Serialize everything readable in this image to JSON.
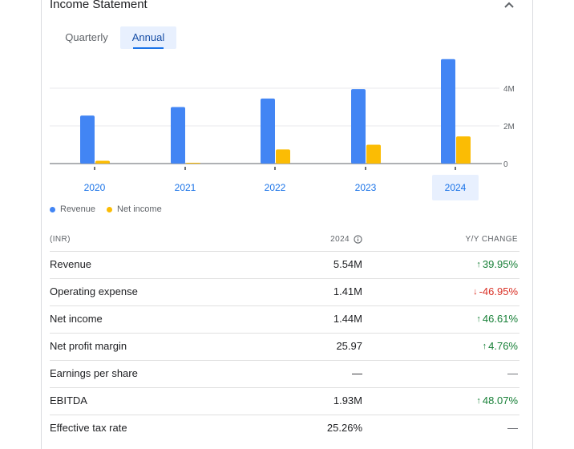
{
  "panel": {
    "title": "Income Statement",
    "tabs": [
      "Quarterly",
      "Annual"
    ],
    "selected_tab": "Annual"
  },
  "colors": {
    "revenue": "#4285f4",
    "net_income": "#fbbc04",
    "accent": "#1a73e8",
    "up": "#188038",
    "down": "#d93025"
  },
  "chart_data": {
    "type": "bar",
    "categories": [
      "2020",
      "2021",
      "2022",
      "2023",
      "2024"
    ],
    "series": [
      {
        "name": "Revenue",
        "values": [
          2.55,
          3.0,
          3.45,
          3.95,
          5.54
        ]
      },
      {
        "name": "Net income",
        "values": [
          0.15,
          0.04,
          0.75,
          1.0,
          1.44
        ]
      }
    ],
    "y_ticks": [
      "4M",
      "2M",
      "0"
    ],
    "ylim": [
      0,
      6
    ],
    "selected_category": "2024",
    "legend": "bottom-left"
  },
  "table": {
    "headers": {
      "label": "(INR)",
      "year": "2024",
      "change": "Y/Y CHANGE"
    },
    "rows": [
      {
        "name": "Revenue",
        "value": "5.54M",
        "change": "39.95%",
        "dir": "up"
      },
      {
        "name": "Operating expense",
        "value": "1.41M",
        "change": "-46.95%",
        "dir": "down"
      },
      {
        "name": "Net income",
        "value": "1.44M",
        "change": "46.61%",
        "dir": "up"
      },
      {
        "name": "Net profit margin",
        "value": "25.97",
        "change": "4.76%",
        "dir": "up"
      },
      {
        "name": "Earnings per share",
        "value": "—",
        "change": "—",
        "dir": "none"
      },
      {
        "name": "EBITDA",
        "value": "1.93M",
        "change": "48.07%",
        "dir": "up"
      },
      {
        "name": "Effective tax rate",
        "value": "25.26%",
        "change": "—",
        "dir": "none"
      }
    ]
  }
}
